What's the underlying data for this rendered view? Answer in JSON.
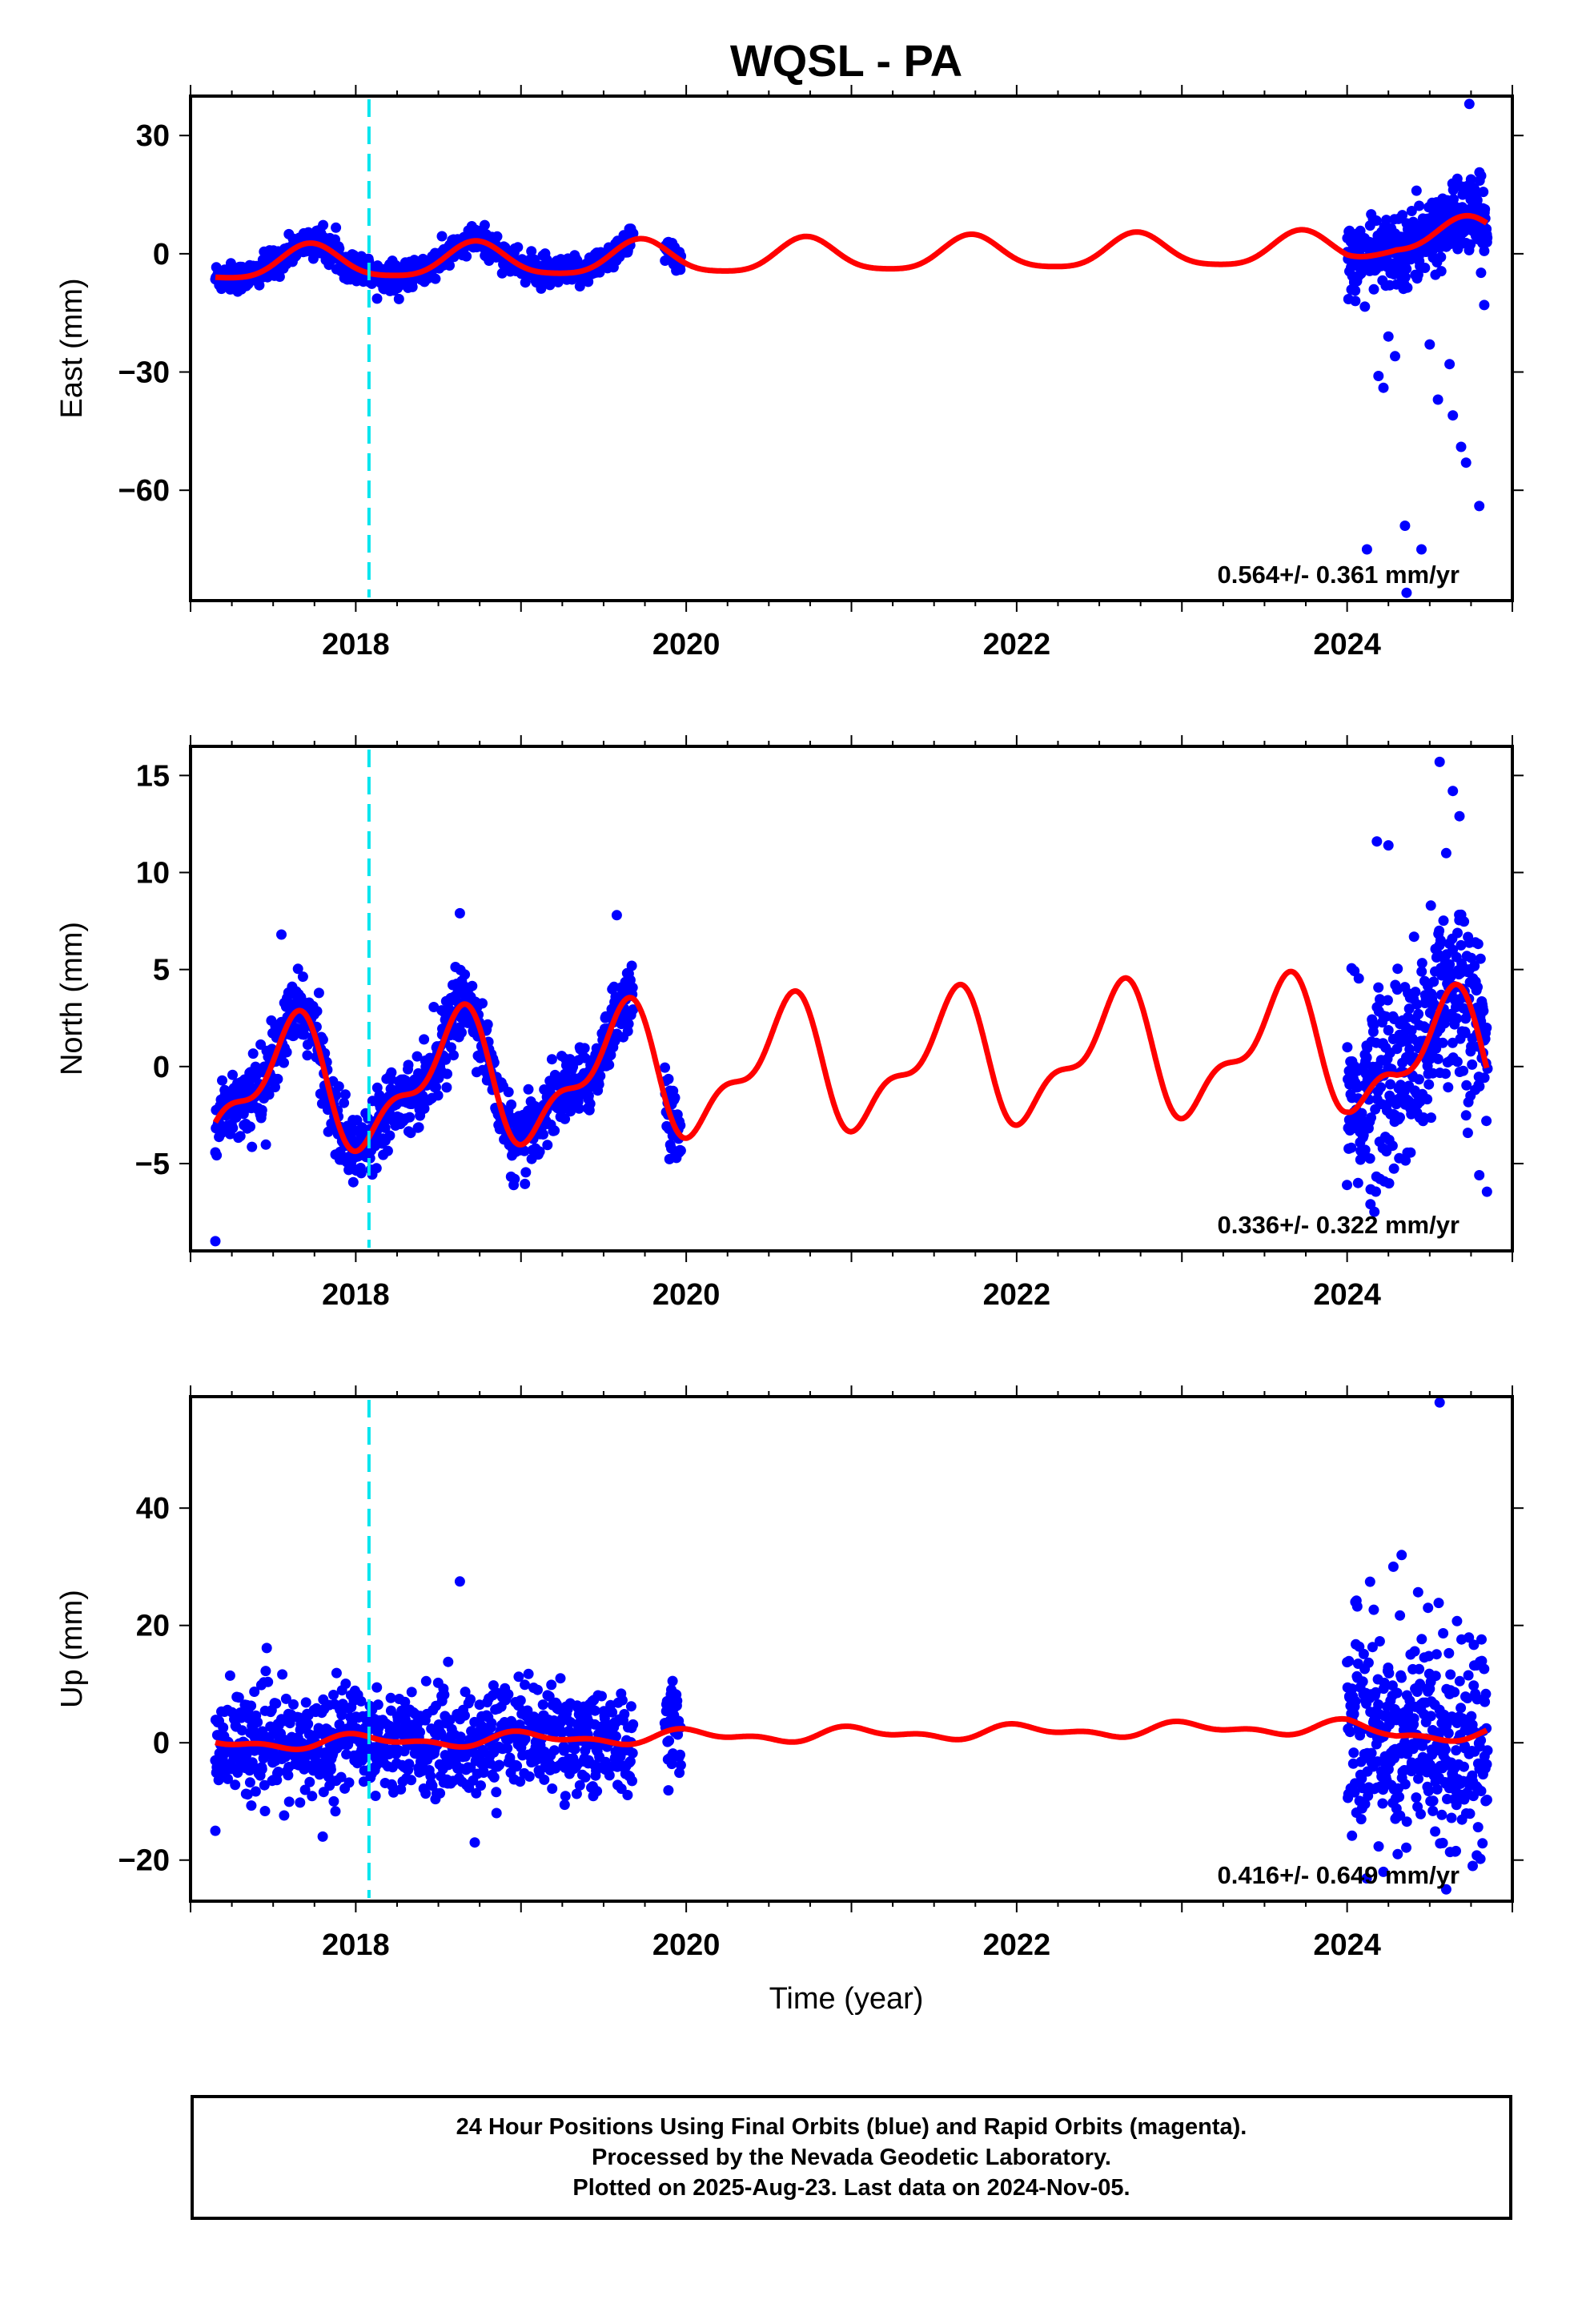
{
  "title": "WQSL - PA",
  "xlabel": "Time (year)",
  "x_ticks": [
    "2018",
    "2020",
    "2022",
    "2024"
  ],
  "caption": {
    "line1": "24 Hour Positions Using Final Orbits (blue) and Rapid Orbits (magenta).",
    "line2": "Processed by the Nevada Geodetic Laboratory.",
    "line3": "Plotted on 2025-Aug-23. Last data on 2024-Nov-05."
  },
  "colors": {
    "data": "#0000ff",
    "model": "#ff0000",
    "event": "#00e5ee"
  },
  "chart_data": [
    {
      "type": "scatter",
      "panel": "east",
      "ylabel": "East (mm)",
      "y_ticks": [
        "30",
        "0",
        "−30",
        "−60"
      ],
      "y_tick_values": [
        30,
        0,
        -30,
        -60
      ],
      "xlim": [
        2017.0,
        2025.0
      ],
      "ylim": [
        -88,
        40
      ],
      "rate_text": "0.564+/- 0.361 mm/yr",
      "event_x": 2018.08,
      "gaps": [
        [
          2019.68,
          2019.87
        ],
        [
          2019.97,
          2024.0
        ]
      ],
      "data_spans": [
        [
          2017.15,
          2019.68
        ],
        [
          2019.87,
          2019.97
        ],
        [
          2024.0,
          2024.85
        ]
      ],
      "model": {
        "rate_mm_per_yr": 0.564,
        "intercept_2017": -2.8,
        "annual_cos": -0.6,
        "annual_sin": -4.2,
        "semiannual_cos": -0.8,
        "semiannual_sin": 0.3,
        "offset_after_2024": 3.0
      },
      "scatter_std": 1.8,
      "scatter_std_2024": 4.5,
      "outliers": [
        {
          "x": 2024.12,
          "y": -75
        },
        {
          "x": 2024.35,
          "y": -69
        },
        {
          "x": 2024.45,
          "y": -75
        },
        {
          "x": 2024.36,
          "y": -86
        },
        {
          "x": 2024.55,
          "y": -37
        },
        {
          "x": 2024.64,
          "y": -41
        },
        {
          "x": 2024.69,
          "y": -49
        },
        {
          "x": 2024.72,
          "y": -53
        },
        {
          "x": 2024.8,
          "y": -64
        },
        {
          "x": 2024.29,
          "y": -26
        },
        {
          "x": 2024.19,
          "y": -31
        },
        {
          "x": 2024.22,
          "y": -34
        },
        {
          "x": 2024.74,
          "y": 38
        },
        {
          "x": 2024.42,
          "y": 16
        },
        {
          "x": 2024.7,
          "y": 17
        },
        {
          "x": 2024.05,
          "y": -12
        },
        {
          "x": 2024.83,
          "y": -13
        },
        {
          "x": 2024.5,
          "y": -23
        },
        {
          "x": 2024.62,
          "y": -28
        },
        {
          "x": 2024.25,
          "y": -21
        }
      ]
    },
    {
      "type": "scatter",
      "panel": "north",
      "ylabel": "North (mm)",
      "y_ticks": [
        "15",
        "10",
        "5",
        "0",
        "−5"
      ],
      "y_tick_values": [
        15,
        10,
        5,
        0,
        -5
      ],
      "xlim": [
        2017.0,
        2025.0
      ],
      "ylim": [
        -9.5,
        16.5
      ],
      "rate_text": "0.336+/- 0.322 mm/yr",
      "event_x": 2018.08,
      "gaps": [
        [
          2019.68,
          2019.87
        ],
        [
          2019.97,
          2024.0
        ]
      ],
      "data_spans": [
        [
          2017.15,
          2019.68
        ],
        [
          2019.87,
          2019.97
        ],
        [
          2024.0,
          2024.85
        ]
      ],
      "model": {
        "rate_mm_per_yr": 0.336,
        "intercept_2017": -1.3,
        "annual_cos": -2.4,
        "annual_sin": -1.7,
        "semiannual_cos": -1.0,
        "semiannual_sin": 0.9,
        "offset_after_2024": -1.0
      },
      "scatter_std": 0.9,
      "scatter_std_2024": 2.6,
      "outliers": [
        {
          "x": 2024.56,
          "y": 15.7
        },
        {
          "x": 2024.64,
          "y": 14.2
        },
        {
          "x": 2024.68,
          "y": 12.9
        },
        {
          "x": 2024.18,
          "y": 11.6
        },
        {
          "x": 2024.25,
          "y": 11.4
        },
        {
          "x": 2024.6,
          "y": 11.0
        },
        {
          "x": 2024.8,
          "y": -5.6
        },
        {
          "x": 2024.2,
          "y": -5.8
        },
        {
          "x": 2017.15,
          "y": -9.0
        },
        {
          "x": 2018.63,
          "y": 7.9
        },
        {
          "x": 2019.58,
          "y": 7.8
        },
        {
          "x": 2017.55,
          "y": 6.8
        }
      ]
    },
    {
      "type": "scatter",
      "panel": "up",
      "ylabel": "Up (mm)",
      "y_ticks": [
        "40",
        "20",
        "0",
        "−20"
      ],
      "y_tick_values": [
        40,
        20,
        0,
        -20
      ],
      "xlim": [
        2017.0,
        2025.0
      ],
      "ylim": [
        -27,
        59
      ],
      "rate_text": "0.416+/- 0.649 mm/yr",
      "event_x": 2018.08,
      "gaps": [
        [
          2019.68,
          2019.87
        ],
        [
          2019.97,
          2024.0
        ]
      ],
      "data_spans": [
        [
          2017.15,
          2019.68
        ],
        [
          2019.87,
          2019.97
        ],
        [
          2024.0,
          2024.85
        ]
      ],
      "model": {
        "rate_mm_per_yr": 0.416,
        "intercept_2017": -0.2,
        "annual_cos": 0.9,
        "annual_sin": 0.2,
        "semiannual_cos": 0.4,
        "semiannual_sin": -0.4,
        "offset_after_2024": -1.5
      },
      "scatter_std": 4.3,
      "scatter_std_2024": 9.0,
      "outliers": [
        {
          "x": 2024.56,
          "y": 58
        },
        {
          "x": 2024.33,
          "y": 32
        },
        {
          "x": 2024.28,
          "y": 30
        },
        {
          "x": 2018.63,
          "y": 27.5
        },
        {
          "x": 2024.05,
          "y": 24
        },
        {
          "x": 2024.49,
          "y": 23
        },
        {
          "x": 2024.6,
          "y": -25
        },
        {
          "x": 2024.76,
          "y": -21
        },
        {
          "x": 2018.72,
          "y": -17
        },
        {
          "x": 2017.8,
          "y": -16
        },
        {
          "x": 2017.15,
          "y": -15
        },
        {
          "x": 2024.22,
          "y": -22
        }
      ]
    }
  ]
}
